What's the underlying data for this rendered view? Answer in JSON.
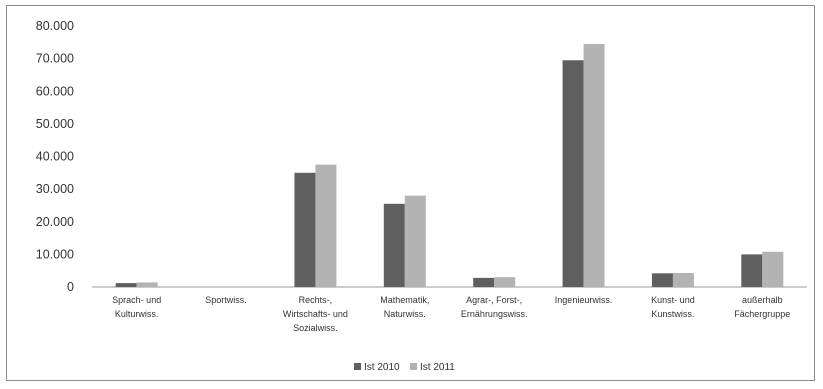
{
  "chart_data": {
    "type": "bar",
    "title": "",
    "xlabel": "",
    "ylabel": "",
    "ylim": [
      0,
      80000
    ],
    "yticks": [
      "0",
      "10.000",
      "20.000",
      "30.000",
      "40.000",
      "50.000",
      "60.000",
      "70.000",
      "80.000"
    ],
    "ytick_values": [
      0,
      10000,
      20000,
      30000,
      40000,
      50000,
      60000,
      70000,
      80000
    ],
    "grid": false,
    "legend_position": "bottom",
    "categories": [
      [
        "Sprach- und",
        "Kulturwiss."
      ],
      [
        "Sportwiss."
      ],
      [
        "Rechts-,",
        "Wirtschafts- und",
        "Sozialwiss."
      ],
      [
        "Mathematik,",
        "Naturwiss."
      ],
      [
        "Agrar-, Forst-,",
        "Ernährungswiss."
      ],
      [
        "Ingenieurwiss."
      ],
      [
        "Kunst- und",
        "Kunstwiss."
      ],
      [
        "außerhalb",
        "Fächergruppe"
      ]
    ],
    "series": [
      {
        "name": "Ist 2010",
        "color": "#5f5f5f",
        "values": [
          1200,
          0,
          35000,
          25500,
          2800,
          69500,
          4200,
          10000
        ]
      },
      {
        "name": "Ist 2011",
        "color": "#b3b3b3",
        "values": [
          1400,
          0,
          37500,
          28000,
          3000,
          74500,
          4300,
          10800
        ]
      }
    ]
  }
}
